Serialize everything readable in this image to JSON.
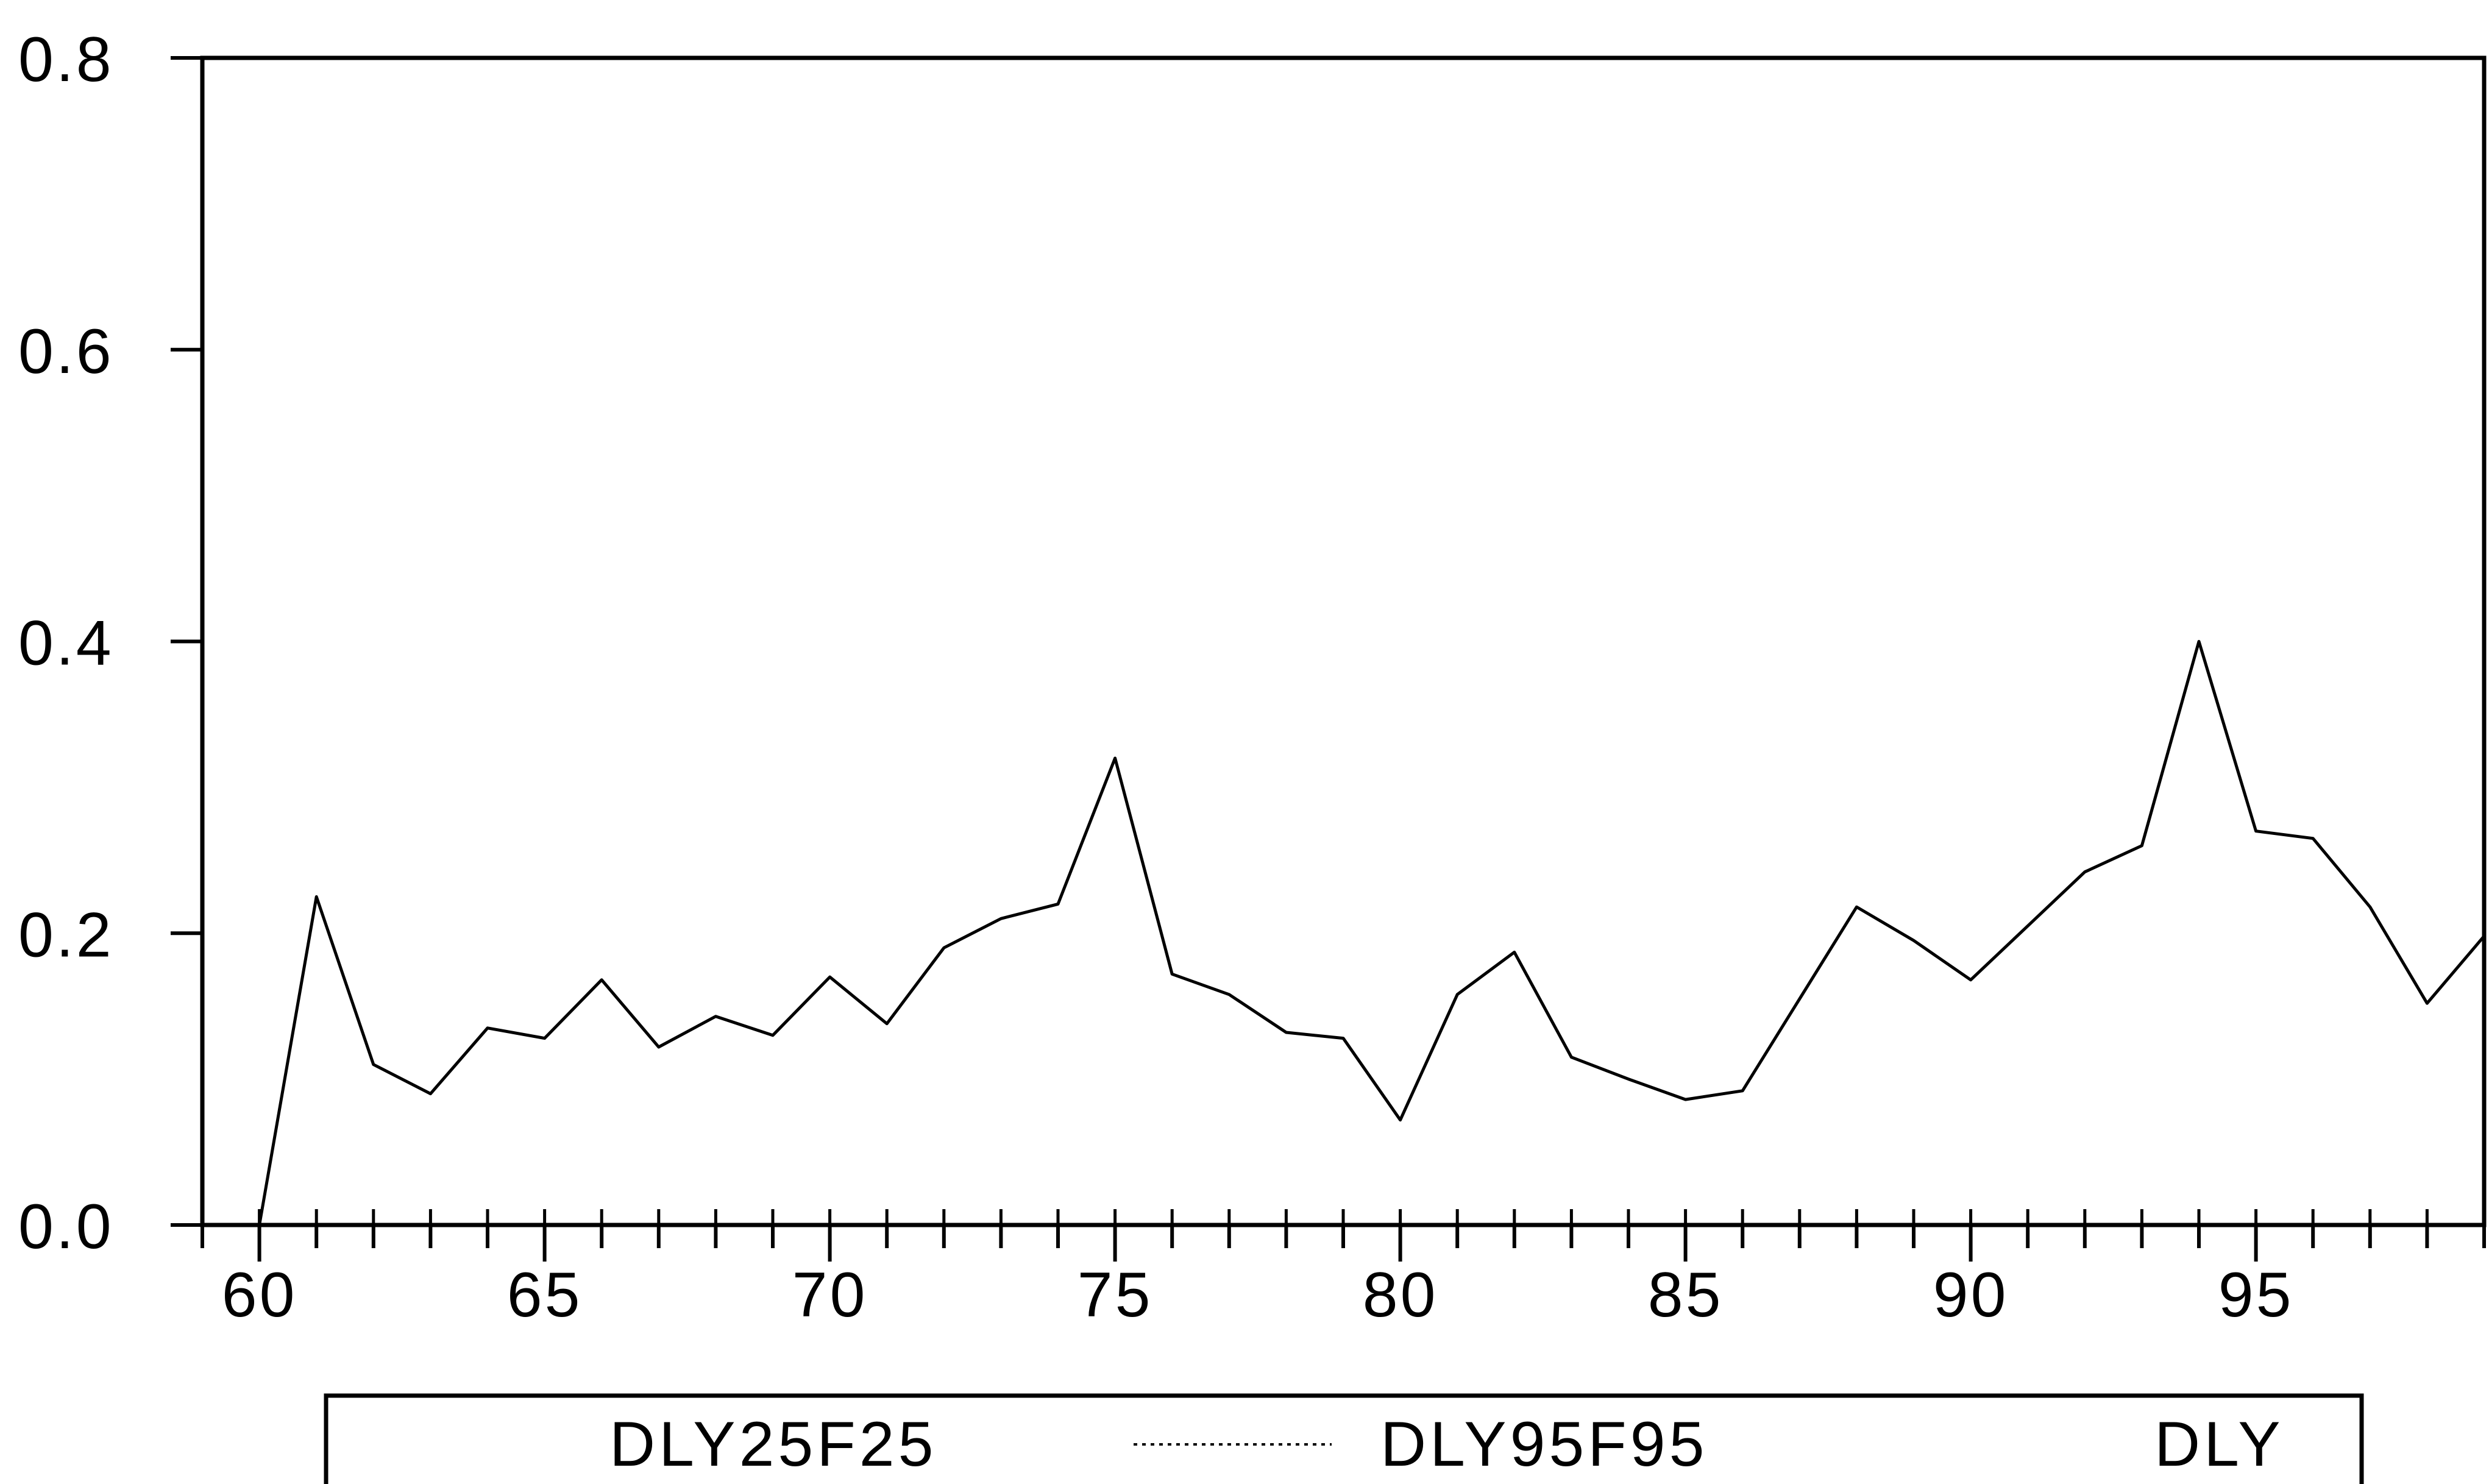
{
  "chart_data": {
    "type": "line",
    "title": "",
    "xlabel": "",
    "ylabel": "",
    "xlim": [
      59,
      99
    ],
    "ylim": [
      0.0,
      0.8
    ],
    "x_ticks_major": [
      60,
      65,
      70,
      75,
      80,
      85,
      90,
      95
    ],
    "x_tick_labels": [
      "60",
      "65",
      "70",
      "75",
      "80",
      "85",
      "90",
      "95"
    ],
    "y_ticks": [
      0.0,
      0.2,
      0.4,
      0.6,
      0.8
    ],
    "y_tick_labels": [
      "0.0",
      "0.2",
      "0.4",
      "0.6",
      "0.8"
    ],
    "grid": false,
    "legend_position": "bottom",
    "legend": [
      "DLY25F25",
      "DLY95F95",
      "DLY"
    ],
    "series": [
      {
        "name": "DLY25F25",
        "style": "solid",
        "x": [],
        "values": []
      },
      {
        "name": "DLY95F95",
        "style": "dotted",
        "x": [],
        "values": []
      },
      {
        "name": "DLY",
        "style": "solid",
        "x": [
          60,
          61,
          62,
          63,
          64,
          65,
          66,
          67,
          68,
          69,
          70,
          71,
          72,
          73,
          74,
          75,
          76,
          77,
          78,
          79,
          80,
          81,
          82,
          83,
          84,
          85,
          86,
          87,
          88,
          89,
          90,
          91,
          92,
          93,
          94,
          95,
          96,
          97,
          98,
          99
        ],
        "values": [
          0.0,
          0.225,
          0.11,
          0.09,
          0.135,
          0.128,
          0.168,
          0.122,
          0.143,
          0.13,
          0.17,
          0.138,
          0.19,
          0.21,
          0.22,
          0.32,
          0.172,
          0.158,
          0.132,
          0.128,
          0.072,
          0.158,
          0.187,
          0.115,
          0.1,
          0.086,
          0.092,
          0.155,
          0.218,
          0.195,
          0.168,
          0.205,
          0.242,
          0.26,
          0.4,
          0.27,
          0.265,
          0.218,
          0.152,
          0.198
        ]
      }
    ]
  }
}
